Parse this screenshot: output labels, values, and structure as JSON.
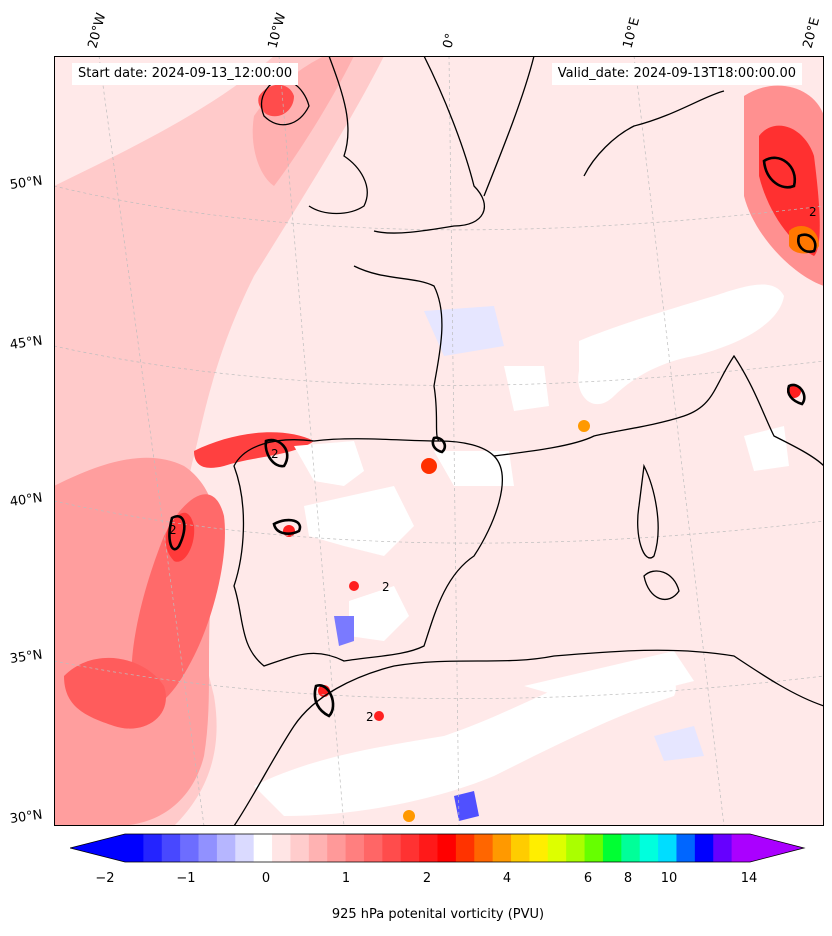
{
  "header": {
    "start_date": "Start date: 2024-09-13_12:00:00",
    "valid_date": "Valid_date: 2024-09-13T18:00:00.00"
  },
  "map": {
    "lon_ticks": [
      "20°W",
      "10°W",
      "0°",
      "10°E",
      "20°E"
    ],
    "lat_ticks": [
      "50°N",
      "45°N",
      "40°N",
      "35°N",
      "30°N"
    ],
    "contour_label": "2"
  },
  "colorbar": {
    "labels": [
      "−2",
      "−1",
      "0",
      "1",
      "2",
      "4",
      "6",
      "8",
      "10",
      "14"
    ],
    "title": "925 hPa potenital vorticity (PVU)",
    "colors": [
      "#0000ff",
      "#2424ff",
      "#4848ff",
      "#6d6dff",
      "#9191ff",
      "#b6b6ff",
      "#dadaff",
      "#ffffff",
      "#ffe5e5",
      "#ffcccc",
      "#ffb2b2",
      "#ff9999",
      "#ff7f7f",
      "#ff6666",
      "#ff4c4c",
      "#ff3232",
      "#ff1919",
      "#ff0000",
      "#ff3300",
      "#ff6600",
      "#ff9900",
      "#ffcc00",
      "#ffee00",
      "#ddff00",
      "#aaff00",
      "#66ff00",
      "#00ff33",
      "#00ff99",
      "#00ffdd",
      "#00ddff",
      "#0066ff",
      "#0000ff",
      "#6600ff",
      "#aa00ff"
    ]
  }
}
